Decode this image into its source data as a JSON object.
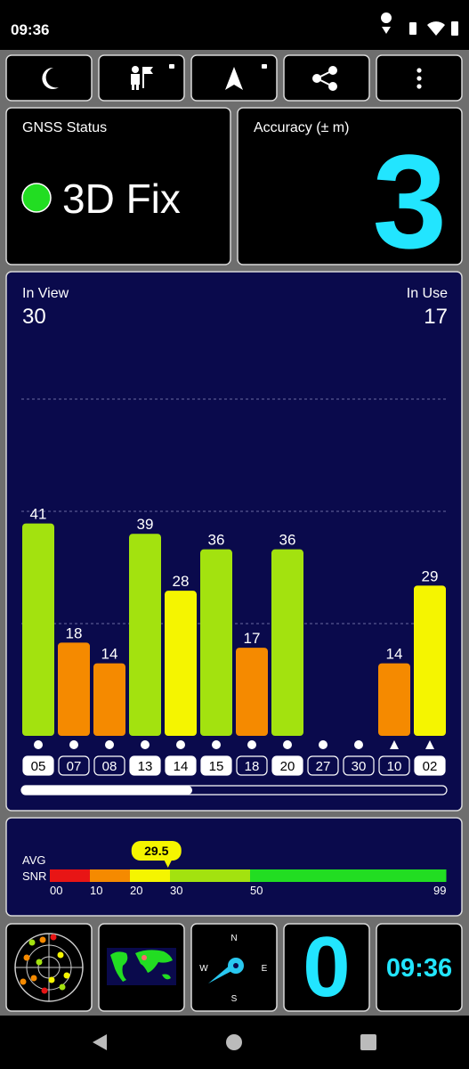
{
  "status_bar": {
    "time": "09:36"
  },
  "gnss_status": {
    "title": "GNSS Status",
    "fix": "3D Fix"
  },
  "accuracy": {
    "title": "Accuracy (± m)",
    "value": 3
  },
  "satellites": {
    "in_view_label": "In View",
    "in_view": 30,
    "in_use_label": "In Use",
    "in_use": 17
  },
  "chart_data": {
    "type": "bar",
    "categories": [
      "05",
      "07",
      "08",
      "13",
      "14",
      "15",
      "18",
      "20",
      "27",
      "30",
      "10",
      "02"
    ],
    "values": [
      41,
      18,
      14,
      39,
      28,
      36,
      17,
      36,
      0,
      0,
      14,
      29
    ],
    "colors": [
      "#a3e20f",
      "#f58a00",
      "#f58a00",
      "#a3e20f",
      "#f5f500",
      "#a3e20f",
      "#f58a00",
      "#a3e20f",
      "#e82020",
      "#e82020",
      "#f58a00",
      "#f5f500"
    ],
    "markers": [
      "circle",
      "circle",
      "circle",
      "circle",
      "circle",
      "circle",
      "circle",
      "circle",
      "circle",
      "circle",
      "triangle",
      "triangle"
    ],
    "in_use": [
      true,
      false,
      false,
      true,
      true,
      true,
      false,
      true,
      false,
      false,
      false,
      true
    ],
    "ylim": [
      0,
      65
    ]
  },
  "snr": {
    "avg_label": "AVG",
    "snr_label": "SNR",
    "value": 29.5,
    "xlim": [
      0,
      99
    ],
    "xticks": [
      {
        "value": 0,
        "label": "00"
      },
      10,
      20,
      30,
      50,
      99
    ],
    "segment_colors": [
      "#e81515",
      "#f58a00",
      "#f5f500",
      "#a3e20f",
      "#22dd22"
    ]
  },
  "tiles": {
    "compass": {
      "n": "N",
      "e": "E",
      "s": "S",
      "w": "W"
    },
    "count": 0,
    "clock": "09:36"
  }
}
